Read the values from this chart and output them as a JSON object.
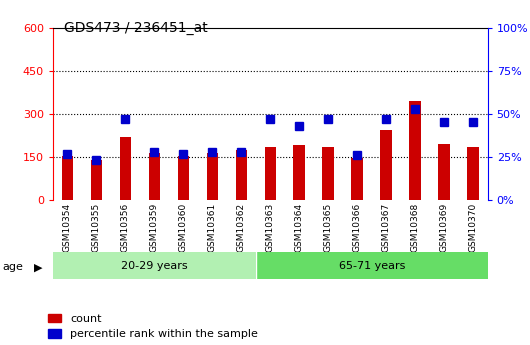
{
  "title": "GDS473 / 236451_at",
  "categories": [
    "GSM10354",
    "GSM10355",
    "GSM10356",
    "GSM10359",
    "GSM10360",
    "GSM10361",
    "GSM10362",
    "GSM10363",
    "GSM10364",
    "GSM10365",
    "GSM10366",
    "GSM10367",
    "GSM10368",
    "GSM10369",
    "GSM10370"
  ],
  "counts": [
    155,
    138,
    220,
    163,
    152,
    165,
    175,
    185,
    190,
    183,
    148,
    245,
    345,
    195,
    185
  ],
  "percentile_ranks": [
    27,
    23,
    47,
    28,
    27,
    28,
    28,
    47,
    43,
    47,
    26,
    47,
    53,
    45,
    45
  ],
  "group1_label": "20-29 years",
  "group2_label": "65-71 years",
  "group1_indices": [
    0,
    1,
    2,
    3,
    4,
    5,
    6
  ],
  "group2_indices": [
    7,
    8,
    9,
    10,
    11,
    12,
    13,
    14
  ],
  "left_ylim": [
    0,
    600
  ],
  "right_ylim": [
    0,
    100
  ],
  "left_yticks": [
    0,
    150,
    300,
    450,
    600
  ],
  "right_yticks": [
    0,
    25,
    50,
    75,
    100
  ],
  "left_tick_labels": [
    "0",
    "150",
    "300",
    "450",
    "600"
  ],
  "right_tick_labels": [
    "0%",
    "25%",
    "50%",
    "75%",
    "100%"
  ],
  "bar_color": "#cc0000",
  "marker_color": "#0000cc",
  "group1_bg": "#b2f0b2",
  "group2_bg": "#66dd66",
  "label_bg": "#c8c8c8",
  "legend_count_label": "count",
  "legend_percentile_label": "percentile rank within the sample",
  "age_label": "age",
  "bar_width": 0.4,
  "marker_size": 6,
  "gridline_ticks": [
    150,
    300,
    450
  ]
}
